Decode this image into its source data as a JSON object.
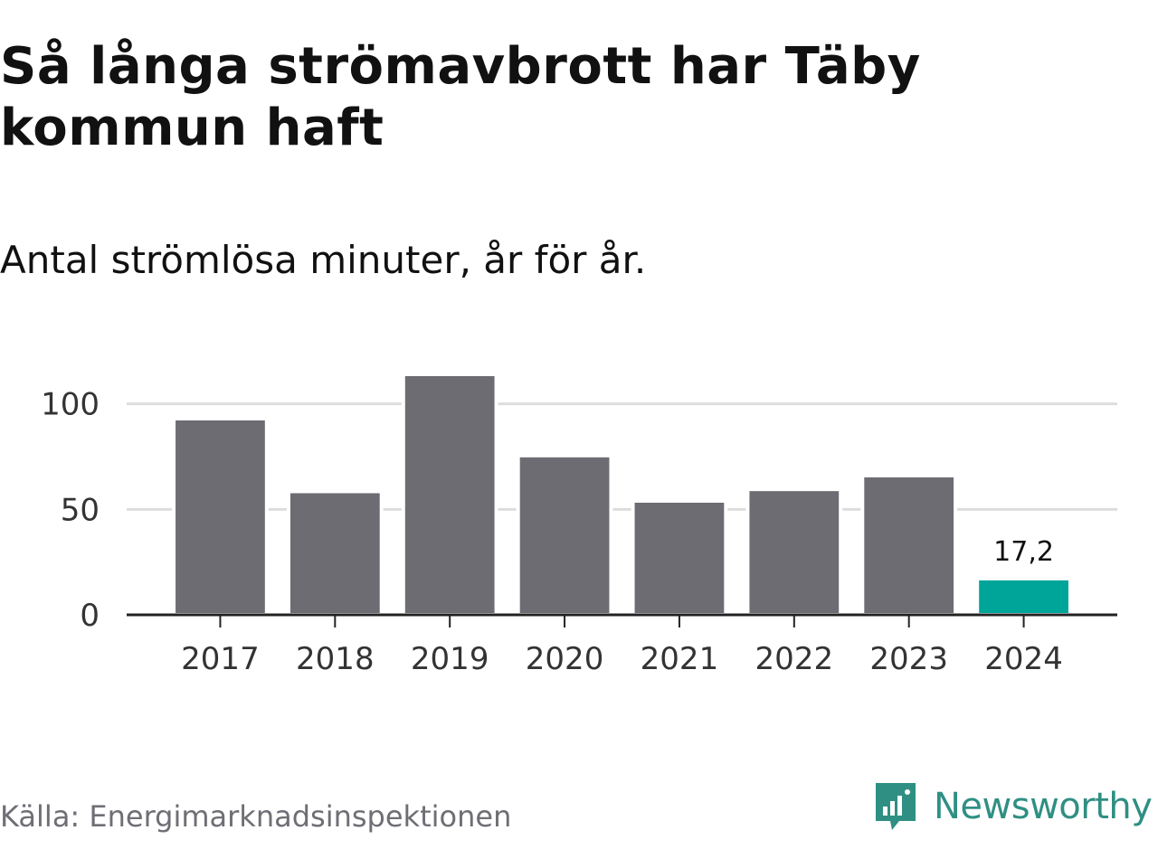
{
  "header": {
    "title": "Så långa strömavbrott har Täby kommun haft",
    "subtitle": "Antal strömlösa minuter, år för år."
  },
  "footer": {
    "source": "Källa: Energimarknadsinspektionen",
    "brand": "Newsworthy",
    "brand_icon": "chart-bubble-logo-icon"
  },
  "colors": {
    "bar": "#6d6c73",
    "highlight": "#00a59a",
    "gridline": "#dddddd",
    "axis": "#222222",
    "brand": "#2f8f83"
  },
  "chart_data": {
    "type": "bar",
    "categories": [
      "2017",
      "2018",
      "2019",
      "2020",
      "2021",
      "2022",
      "2023",
      "2024"
    ],
    "values": [
      93,
      58.5,
      114,
      75.5,
      54,
      59.5,
      66,
      17.2
    ],
    "highlight_index": 7,
    "data_labels": [
      {
        "index": 7,
        "text": "17,2"
      }
    ],
    "ylim": [
      0,
      120
    ],
    "yticks": [
      0,
      50,
      100
    ],
    "grid": true,
    "title": "",
    "xlabel": "",
    "ylabel": ""
  }
}
